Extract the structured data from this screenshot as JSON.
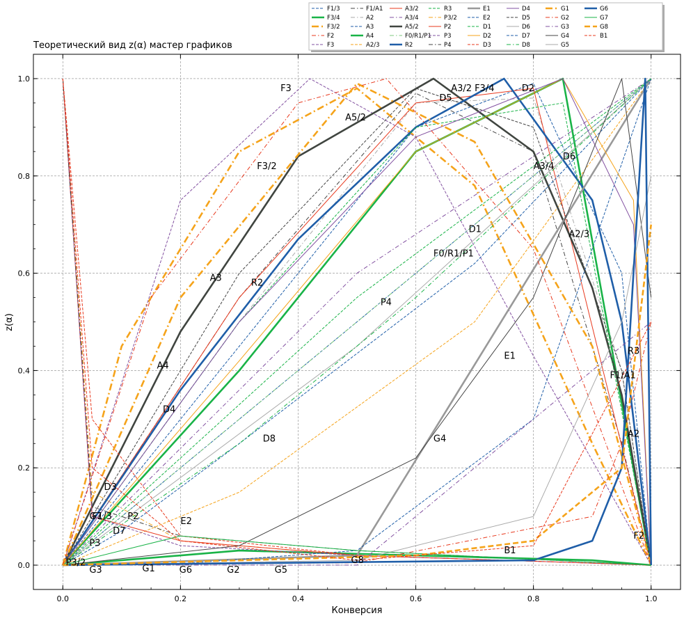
{
  "chart_data": {
    "type": "line",
    "title": "Теоретический вид z(α) мастер графиков",
    "xlabel": "Конверсия",
    "ylabel": "z(α)",
    "xlim": [
      -0.05,
      1.05
    ],
    "ylim": [
      -0.05,
      1.05
    ],
    "xticks": [
      "0.0",
      "0.2",
      "0.4",
      "0.6",
      "0.8",
      "1.0"
    ],
    "yticks": [
      "0.0",
      "0.2",
      "0.4",
      "0.6",
      "0.8",
      "1.0"
    ],
    "grid": true,
    "legend_position": "top-right, outside plot",
    "series": [
      {
        "name": "F1/3",
        "color": "#1f5ea8",
        "style": "dashed",
        "x": [
          0,
          0.5,
          1
        ],
        "y": [
          0,
          0.5,
          1
        ]
      },
      {
        "name": "F3/4",
        "color": "#19b347",
        "style": "solid-thick",
        "x": [
          0,
          0.3,
          0.6,
          0.9,
          1
        ],
        "y": [
          0.0,
          0.03,
          0.02,
          0.01,
          0
        ]
      },
      {
        "name": "F3/2",
        "color": "#f5a31a",
        "style": "dashdot-thick",
        "x": [
          0,
          0.1,
          0.3,
          0.5,
          0.7,
          0.9,
          1
        ],
        "y": [
          0,
          0.45,
          0.85,
          0.98,
          0.78,
          0.25,
          0
        ]
      },
      {
        "name": "F2",
        "color": "#e8391e",
        "style": "dashdot",
        "x": [
          0,
          0.5,
          0.9,
          0.95,
          1
        ],
        "y": [
          0,
          0.005,
          0.1,
          0.25,
          0.5
        ]
      },
      {
        "name": "F3",
        "color": "#8250a0",
        "style": "dashed",
        "x": [
          0,
          0.2,
          0.42,
          0.6,
          0.8,
          1
        ],
        "y": [
          0,
          0.75,
          1.0,
          0.88,
          0.43,
          0
        ]
      },
      {
        "name": "F1/A1",
        "color": "#444444",
        "style": "dashdot",
        "x": [
          0,
          0.3,
          0.6,
          0.8,
          0.95,
          1
        ],
        "y": [
          0,
          0.55,
          0.97,
          0.85,
          0.25,
          0
        ]
      },
      {
        "name": "A2",
        "color": "#aaaaaa",
        "style": "dashdot",
        "x": [
          0,
          0.3,
          0.6,
          0.8,
          0.95,
          1
        ],
        "y": [
          0,
          0.5,
          0.95,
          0.96,
          0.4,
          0
        ]
      },
      {
        "name": "A3",
        "color": "#1f5ea8",
        "style": "dashed",
        "x": [
          0,
          0.3,
          0.6,
          0.8,
          0.95,
          1
        ],
        "y": [
          0,
          0.45,
          0.9,
          0.99,
          0.6,
          0
        ]
      },
      {
        "name": "A4",
        "color": "#19b347",
        "style": "solid-thick",
        "x": [
          0,
          0.3,
          0.6,
          0.85,
          1
        ],
        "y": [
          0,
          0.4,
          0.85,
          1.0,
          0
        ]
      },
      {
        "name": "A2/3",
        "color": "#f5a31a",
        "style": "dashed",
        "x": [
          0,
          0.3,
          0.7,
          1
        ],
        "y": [
          0,
          0.15,
          0.5,
          1
        ]
      },
      {
        "name": "A3/2",
        "color": "#e8391e",
        "style": "solid",
        "x": [
          0,
          0.3,
          0.6,
          0.8,
          1
        ],
        "y": [
          0,
          0.55,
          0.95,
          0.98,
          0
        ]
      },
      {
        "name": "A3/4",
        "color": "#8250a0",
        "style": "dashdot",
        "x": [
          0,
          0.5,
          1
        ],
        "y": [
          0,
          0.6,
          1
        ]
      },
      {
        "name": "A5/2",
        "color": "#404540",
        "style": "solid-thick",
        "x": [
          0,
          0.2,
          0.4,
          0.63,
          0.8,
          0.9,
          0.95,
          1
        ],
        "y": [
          0,
          0.48,
          0.84,
          1.0,
          0.85,
          0.57,
          0.35,
          0
        ]
      },
      {
        "name": "F0/R1/P1",
        "color": "#7fc97f",
        "style": "dashdot",
        "x": [
          0,
          1
        ],
        "y": [
          0,
          1
        ]
      },
      {
        "name": "R2",
        "color": "#1f5ea8",
        "style": "solid-thick",
        "x": [
          0,
          0.2,
          0.4,
          0.6,
          0.75,
          0.9,
          0.95,
          1
        ],
        "y": [
          0,
          0.36,
          0.67,
          0.9,
          1.0,
          0.75,
          0.5,
          0
        ]
      },
      {
        "name": "R3",
        "color": "#19b347",
        "style": "dashed",
        "x": [
          0,
          0.3,
          0.6,
          0.85,
          1
        ],
        "y": [
          0,
          0.5,
          0.9,
          0.95,
          0
        ]
      },
      {
        "name": "P3/2",
        "color": "#f5a31a",
        "style": "dashdot",
        "x": [
          0,
          0.05,
          0.2,
          0.5,
          1
        ],
        "y": [
          1,
          0.15,
          0.05,
          0.02,
          0
        ]
      },
      {
        "name": "P2",
        "color": "#e8391e",
        "style": "solid",
        "x": [
          0,
          0.05,
          0.2,
          0.5,
          1
        ],
        "y": [
          1,
          0.1,
          0.05,
          0.02,
          0
        ]
      },
      {
        "name": "P3",
        "color": "#8250a0",
        "style": "dashed",
        "x": [
          0,
          0.05,
          0.2,
          0.5,
          1
        ],
        "y": [
          1,
          0.1,
          0.04,
          0.02,
          0
        ]
      },
      {
        "name": "P4",
        "color": "#444444",
        "style": "dashdot",
        "x": [
          0,
          0.05,
          0.2,
          0.5,
          1
        ],
        "y": [
          1,
          0.12,
          0.06,
          0.03,
          0
        ]
      },
      {
        "name": "E1",
        "color": "#999999",
        "style": "solid-thick",
        "x": [
          0,
          0.5,
          1
        ],
        "y": [
          0,
          0.02,
          1
        ]
      },
      {
        "name": "E2",
        "color": "#1f5ea8",
        "style": "dashed",
        "x": [
          0,
          0.2,
          0.5,
          0.8,
          1
        ],
        "y": [
          0,
          0.003,
          0.03,
          0.3,
          1
        ]
      },
      {
        "name": "D1",
        "color": "#19b347",
        "style": "dashed",
        "x": [
          0,
          0.5,
          1
        ],
        "y": [
          0,
          0.55,
          1
        ]
      },
      {
        "name": "D2",
        "color": "#f5a31a",
        "style": "solid",
        "x": [
          0,
          0.3,
          0.6,
          0.85,
          0.97,
          1
        ],
        "y": [
          0,
          0.42,
          0.85,
          1.0,
          0.75,
          0
        ]
      },
      {
        "name": "D3",
        "color": "#e8391e",
        "style": "dashed",
        "x": [
          0,
          0.05,
          0.2,
          0.5,
          1
        ],
        "y": [
          1,
          0.3,
          0.06,
          0.02,
          0
        ]
      },
      {
        "name": "D4",
        "color": "#8250a0",
        "style": "solid",
        "x": [
          0,
          0.3,
          0.6,
          0.85,
          0.97,
          1
        ],
        "y": [
          0,
          0.5,
          0.88,
          1.0,
          0.7,
          0
        ]
      },
      {
        "name": "D5",
        "color": "#444444",
        "style": "dashed",
        "x": [
          0,
          0.3,
          0.6,
          0.8,
          0.95,
          1
        ],
        "y": [
          0,
          0.6,
          0.98,
          0.9,
          0.4,
          0
        ]
      },
      {
        "name": "D6",
        "color": "#aaaaaa",
        "style": "solid",
        "x": [
          0,
          0.5,
          1
        ],
        "y": [
          0,
          0.45,
          1
        ]
      },
      {
        "name": "D7",
        "color": "#1f5ea8",
        "style": "dashed",
        "x": [
          0,
          0.1,
          0.3,
          0.7,
          1
        ],
        "y": [
          0,
          0.07,
          0.25,
          0.62,
          1
        ]
      },
      {
        "name": "D8",
        "color": "#19b347",
        "style": "dashdot",
        "x": [
          0,
          0.3,
          0.6,
          1
        ],
        "y": [
          0,
          0.25,
          0.55,
          1
        ]
      },
      {
        "name": "G1",
        "color": "#f5a31a",
        "style": "dashdot-thick",
        "x": [
          0,
          0.2,
          0.5,
          0.7,
          0.9,
          1
        ],
        "y": [
          0,
          0.55,
          0.99,
          0.87,
          0.45,
          0
        ]
      },
      {
        "name": "G2",
        "color": "#e8391e",
        "style": "dashdot",
        "x": [
          0,
          0.15,
          0.4,
          0.55,
          0.8,
          1
        ],
        "y": [
          0,
          0.55,
          0.95,
          1.0,
          0.65,
          0
        ]
      },
      {
        "name": "G3",
        "color": "#8250a0",
        "style": "dashdot",
        "x": [
          0,
          0.5,
          1
        ],
        "y": [
          0,
          0.0,
          0.5
        ]
      },
      {
        "name": "G4",
        "color": "#444444",
        "style": "solid",
        "x": [
          0,
          0.3,
          0.6,
          0.8,
          0.95,
          1
        ],
        "y": [
          0,
          0.04,
          0.22,
          0.55,
          1.0,
          0.55
        ]
      },
      {
        "name": "G5",
        "color": "#aaaaaa",
        "style": "solid",
        "x": [
          0,
          0.5,
          0.8,
          0.95,
          1
        ],
        "y": [
          0,
          0.01,
          0.1,
          0.5,
          0.8
        ]
      },
      {
        "name": "G6",
        "color": "#1f5ea8",
        "style": "solid-thick",
        "x": [
          0,
          0.8,
          0.9,
          0.95,
          0.99,
          1
        ],
        "y": [
          0,
          0.01,
          0.05,
          0.2,
          1.0,
          0
        ]
      },
      {
        "name": "G7",
        "color": "#19b347",
        "style": "solid",
        "x": [
          0,
          0.2,
          0.5,
          1
        ],
        "y": [
          0,
          0.06,
          0.03,
          0
        ]
      },
      {
        "name": "G8",
        "color": "#f5a31a",
        "style": "dashed-thick",
        "x": [
          0,
          0.3,
          0.6,
          0.8,
          0.95,
          1
        ],
        "y": [
          0,
          0.01,
          0.02,
          0.05,
          0.2,
          0.7
        ]
      },
      {
        "name": "B1",
        "color": "#e8391e",
        "style": "dashed",
        "x": [
          0,
          0.05,
          0.2,
          0.5,
          0.8,
          1
        ],
        "y": [
          1,
          0.2,
          0.05,
          0.01,
          0.04,
          0.5
        ]
      }
    ],
    "curve_labels": [
      {
        "text": "F3",
        "x": 0.37,
        "y": 0.98
      },
      {
        "text": "A3/2",
        "x": 0.66,
        "y": 0.98
      },
      {
        "text": "F3/4",
        "x": 0.7,
        "y": 0.98
      },
      {
        "text": "D2",
        "x": 0.78,
        "y": 0.98
      },
      {
        "text": "D5",
        "x": 0.64,
        "y": 0.96
      },
      {
        "text": "A5/2",
        "x": 0.48,
        "y": 0.92
      },
      {
        "text": "F3/2",
        "x": 0.33,
        "y": 0.82
      },
      {
        "text": "A3/4",
        "x": 0.8,
        "y": 0.82
      },
      {
        "text": "D6",
        "x": 0.85,
        "y": 0.84
      },
      {
        "text": "D1",
        "x": 0.69,
        "y": 0.69
      },
      {
        "text": "A2/3",
        "x": 0.86,
        "y": 0.68
      },
      {
        "text": "F0/R1/P1",
        "x": 0.63,
        "y": 0.64
      },
      {
        "text": "A3",
        "x": 0.25,
        "y": 0.59
      },
      {
        "text": "R2",
        "x": 0.32,
        "y": 0.58
      },
      {
        "text": "P4",
        "x": 0.54,
        "y": 0.54
      },
      {
        "text": "R3",
        "x": 0.96,
        "y": 0.44
      },
      {
        "text": "E1",
        "x": 0.75,
        "y": 0.43
      },
      {
        "text": "F1/A1",
        "x": 0.93,
        "y": 0.39
      },
      {
        "text": "A4",
        "x": 0.16,
        "y": 0.41
      },
      {
        "text": "D4",
        "x": 0.17,
        "y": 0.32
      },
      {
        "text": "A2",
        "x": 0.96,
        "y": 0.27
      },
      {
        "text": "G4",
        "x": 0.63,
        "y": 0.26
      },
      {
        "text": "D8",
        "x": 0.34,
        "y": 0.26
      },
      {
        "text": "D3",
        "x": 0.07,
        "y": 0.16
      },
      {
        "text": "F1/3",
        "x": 0.05,
        "y": 0.1
      },
      {
        "text": "G7",
        "x": 0.045,
        "y": 0.1
      },
      {
        "text": "P2",
        "x": 0.11,
        "y": 0.1
      },
      {
        "text": "E2",
        "x": 0.2,
        "y": 0.09
      },
      {
        "text": "D7",
        "x": 0.085,
        "y": 0.07
      },
      {
        "text": "F2",
        "x": 0.97,
        "y": 0.06
      },
      {
        "text": "P3",
        "x": 0.045,
        "y": 0.045
      },
      {
        "text": "B1",
        "x": 0.75,
        "y": 0.03
      },
      {
        "text": "G8",
        "x": 0.49,
        "y": 0.01
      },
      {
        "text": "P3/2",
        "x": 0.005,
        "y": 0.005
      },
      {
        "text": "G3",
        "x": 0.045,
        "y": -0.01
      },
      {
        "text": "G1",
        "x": 0.135,
        "y": -0.007
      },
      {
        "text": "G6",
        "x": 0.198,
        "y": -0.01
      },
      {
        "text": "G2",
        "x": 0.279,
        "y": -0.01
      },
      {
        "text": "G5",
        "x": 0.36,
        "y": -0.01
      }
    ]
  }
}
